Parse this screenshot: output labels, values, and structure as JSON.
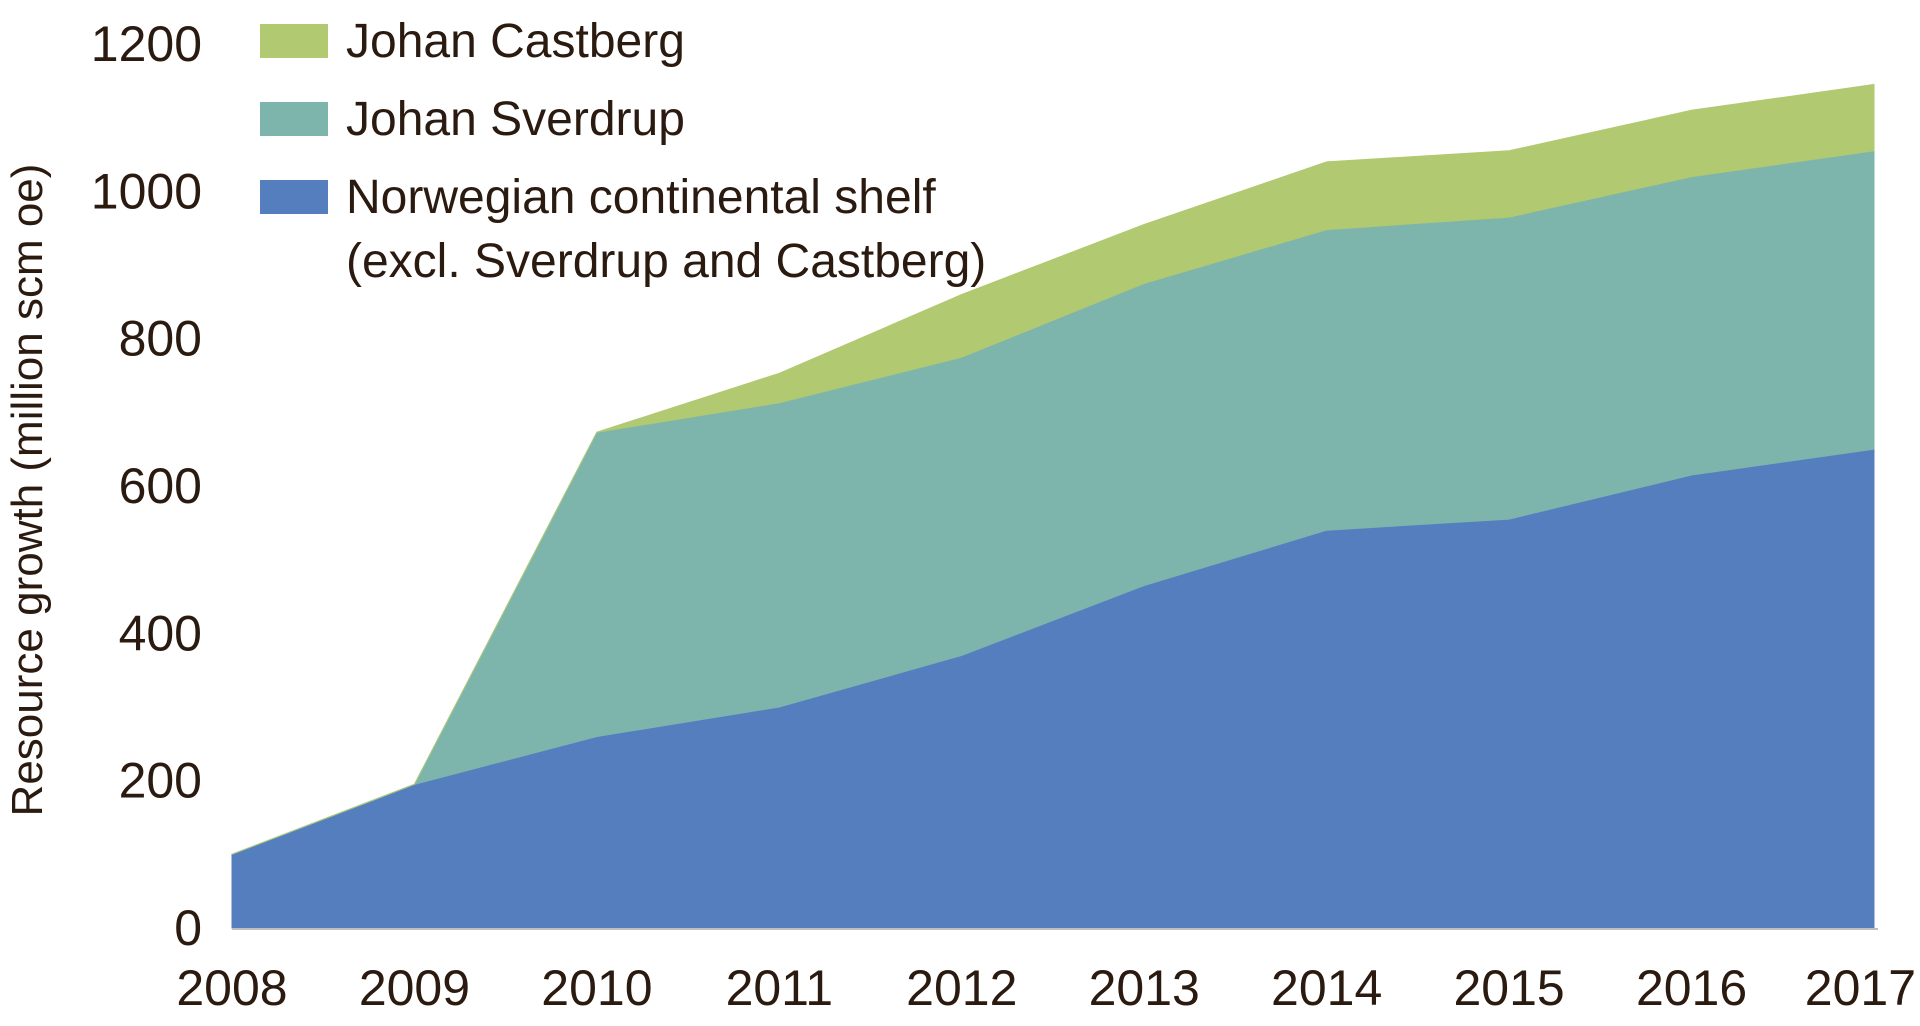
{
  "chart_data": {
    "type": "area",
    "stacked": true,
    "x": [
      2008,
      2009,
      2010,
      2011,
      2012,
      2013,
      2014,
      2015,
      2016,
      2017
    ],
    "x_tick_labels": [
      "2008",
      "2009",
      "2010",
      "2011",
      "2012",
      "2013",
      "2014",
      "2015",
      "2016",
      "2017"
    ],
    "y_tick_labels": [
      "0",
      "200",
      "400",
      "600",
      "800",
      "1000",
      "1200"
    ],
    "ylim": [
      0,
      1200
    ],
    "ylabel": "Resource growth (million scm oe)",
    "xlabel": "",
    "title": "",
    "grid": false,
    "legend_position": "top-left",
    "series": [
      {
        "name": "Norwegian continental shelf",
        "name_line2": "(excl. Sverdrup and Castberg)",
        "color": "#557ebf",
        "values": [
          100,
          195,
          260,
          300,
          370,
          465,
          540,
          555,
          615,
          650
        ]
      },
      {
        "name": "Johan Sverdrup",
        "color": "#7db5ad",
        "values": [
          0,
          0,
          413,
          413,
          405,
          410,
          408,
          410,
          405,
          405
        ]
      },
      {
        "name": "Johan Castberg",
        "color": "#b1c970",
        "values": [
          0,
          0,
          0,
          40,
          85,
          80,
          92,
          90,
          90,
          90
        ]
      }
    ]
  }
}
